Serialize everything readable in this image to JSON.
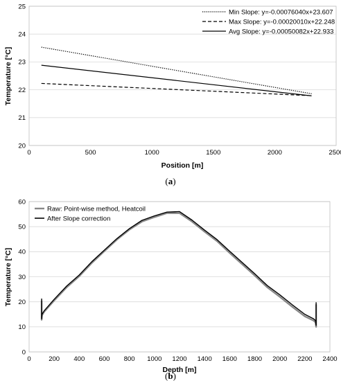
{
  "chart_data": [
    {
      "type": "line",
      "panel_label": "a",
      "xlabel": "Position [m]",
      "ylabel": "Temperature [°C]",
      "xlim": [
        0,
        2500
      ],
      "ylim": [
        20,
        25
      ],
      "xticks": [
        0,
        500,
        1000,
        1500,
        2000,
        2500
      ],
      "yticks": [
        20,
        21,
        22,
        23,
        24,
        25
      ],
      "grid": "horizontal",
      "legend_position": "top-right",
      "series": [
        {
          "name": "Min Slope: y=-0.00076040x+23.607",
          "style": "dotted",
          "color": "#000000",
          "x": [
            100,
            2300
          ],
          "y": [
            23.531,
            21.858
          ]
        },
        {
          "name": "Max Slope: y=-0.00020010x+22.248",
          "style": "dashed",
          "color": "#000000",
          "x": [
            100,
            2300
          ],
          "y": [
            22.228,
            21.788
          ]
        },
        {
          "name": "Avg Slope: y=-0.00050082x+22.933",
          "style": "solid",
          "color": "#000000",
          "x": [
            100,
            2300
          ],
          "y": [
            22.883,
            21.781
          ]
        }
      ]
    },
    {
      "type": "line",
      "panel_label": "b",
      "xlabel": "Depth [m]",
      "ylabel": "Temperature [°C]",
      "xlim": [
        0,
        2400
      ],
      "ylim": [
        0,
        60
      ],
      "xticks": [
        0,
        200,
        400,
        600,
        800,
        1000,
        1200,
        1400,
        1600,
        1800,
        2000,
        2200,
        2400
      ],
      "yticks": [
        0,
        10,
        20,
        30,
        40,
        50,
        60
      ],
      "grid": "horizontal",
      "legend_position": "top-left",
      "series": [
        {
          "name": "Raw: Point-wise method, Heatcoil",
          "color": "#888888",
          "x": [
            100,
            100,
            103,
            110,
            120,
            200,
            300,
            400,
            500,
            600,
            700,
            800,
            900,
            1000,
            1100,
            1200,
            1300,
            1400,
            1500,
            1600,
            1700,
            1800,
            1900,
            2000,
            2100,
            2200,
            2270,
            2285,
            2290,
            2290
          ],
          "y": [
            20.5,
            12.8,
            14.6,
            15.2,
            16.0,
            20.5,
            25.8,
            30.2,
            35.5,
            40.2,
            44.8,
            48.8,
            52.0,
            53.8,
            55.4,
            55.4,
            52.0,
            48.0,
            44.2,
            39.5,
            35.0,
            30.5,
            25.8,
            22.0,
            18.0,
            14.2,
            12.5,
            11.8,
            10.0,
            19.0
          ]
        },
        {
          "name": "After Slope correction",
          "color": "#000000",
          "x": [
            100,
            100,
            103,
            110,
            120,
            200,
            300,
            400,
            500,
            600,
            700,
            800,
            900,
            1000,
            1100,
            1200,
            1300,
            1400,
            1500,
            1600,
            1700,
            1800,
            1900,
            2000,
            2100,
            2200,
            2270,
            2285,
            2290,
            2290
          ],
          "y": [
            21.3,
            13.2,
            15.0,
            15.6,
            16.4,
            21.0,
            26.3,
            30.7,
            36.0,
            40.6,
            45.2,
            49.2,
            52.5,
            54.3,
            55.8,
            56.0,
            52.6,
            48.6,
            44.8,
            40.2,
            35.7,
            31.2,
            26.5,
            22.8,
            18.8,
            15.0,
            13.2,
            12.5,
            10.6,
            19.8
          ]
        }
      ]
    }
  ],
  "captions": {
    "a": {
      "open": "(",
      "letter": "a",
      "close": ")"
    },
    "b": {
      "open": "(",
      "letter": "b",
      "close": ")"
    }
  }
}
